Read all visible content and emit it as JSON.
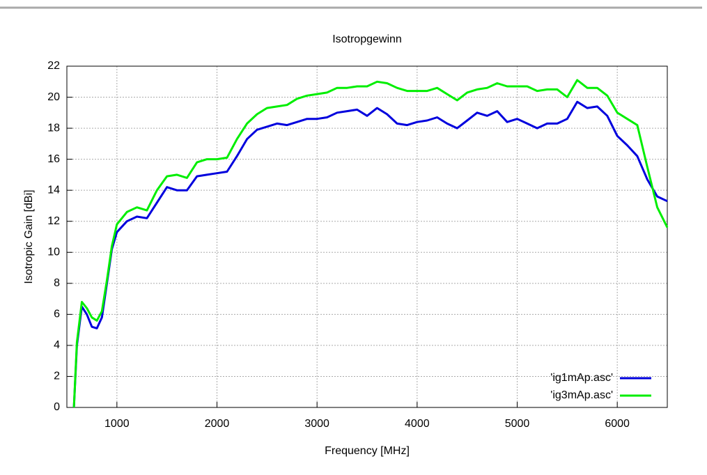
{
  "chart_data": {
    "type": "line",
    "title": "Isotropgewinn",
    "x_label": "Frequency [MHz]",
    "y_label": "Isotropic Gain [dBi]",
    "x": [
      570,
      600,
      650,
      700,
      750,
      800,
      850,
      900,
      950,
      1000,
      1100,
      1200,
      1300,
      1400,
      1500,
      1600,
      1700,
      1800,
      1900,
      2000,
      2100,
      2200,
      2300,
      2400,
      2500,
      2600,
      2700,
      2800,
      2900,
      3000,
      3100,
      3200,
      3300,
      3400,
      3500,
      3600,
      3700,
      3800,
      3900,
      4000,
      4100,
      4200,
      4300,
      4400,
      4500,
      4600,
      4700,
      4800,
      4900,
      5000,
      5100,
      5200,
      5300,
      5400,
      5500,
      5600,
      5700,
      5800,
      5900,
      6000,
      6100,
      6200,
      6300,
      6400,
      6500
    ],
    "series": [
      {
        "name": "'ig1mAp.asc'",
        "color": "#0000dd",
        "values": [
          0,
          4,
          6.5,
          6,
          5.2,
          5.1,
          5.8,
          8,
          10.2,
          11.3,
          12.0,
          12.3,
          12.2,
          13.2,
          14.2,
          14.0,
          14.0,
          14.9,
          15.0,
          15.1,
          15.2,
          16.2,
          17.3,
          17.9,
          18.1,
          18.3,
          18.2,
          18.4,
          18.6,
          18.6,
          18.7,
          19.0,
          19.1,
          19.2,
          18.8,
          19.3,
          18.9,
          18.3,
          18.2,
          18.4,
          18.5,
          18.7,
          18.3,
          18.0,
          18.5,
          19.0,
          18.8,
          19.1,
          18.4,
          18.6,
          18.3,
          18.0,
          18.3,
          18.3,
          18.6,
          19.7,
          19.3,
          19.4,
          18.8,
          17.5,
          16.9,
          16.2,
          14.7,
          13.6,
          13.3
        ]
      },
      {
        "name": "'ig3mAp.asc'",
        "color": "#00ee00",
        "values": [
          0,
          4.2,
          6.8,
          6.4,
          5.8,
          5.6,
          6.2,
          8.2,
          10.4,
          11.8,
          12.6,
          12.9,
          12.7,
          14.0,
          14.9,
          15.0,
          14.8,
          15.8,
          16.0,
          16.0,
          16.1,
          17.3,
          18.3,
          18.9,
          19.3,
          19.4,
          19.5,
          19.9,
          20.1,
          20.2,
          20.3,
          20.6,
          20.6,
          20.7,
          20.7,
          21.0,
          20.9,
          20.6,
          20.4,
          20.4,
          20.4,
          20.6,
          20.2,
          19.8,
          20.3,
          20.5,
          20.6,
          20.9,
          20.7,
          20.7,
          20.7,
          20.4,
          20.5,
          20.5,
          20.0,
          21.1,
          20.6,
          20.6,
          20.1,
          19.0,
          18.6,
          18.2,
          15.5,
          12.9,
          11.6
        ]
      }
    ],
    "xlim": [
      500,
      6500
    ],
    "ylim": [
      0,
      22
    ],
    "xticks": [
      1000,
      2000,
      3000,
      4000,
      5000,
      6000
    ],
    "yticks": [
      0,
      2,
      4,
      6,
      8,
      10,
      12,
      14,
      16,
      18,
      20,
      22
    ],
    "grid": true,
    "legend": "lower right"
  }
}
